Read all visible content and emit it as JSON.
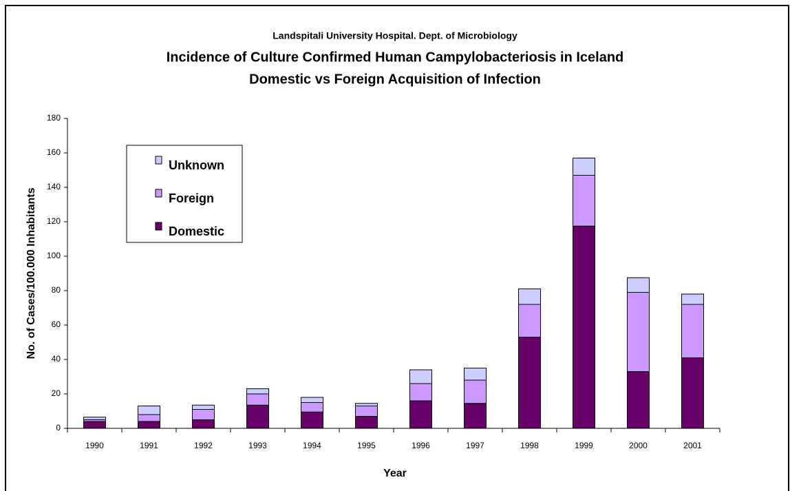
{
  "chart_data": {
    "type": "stacked_bar",
    "source": "Landspitali University Hospital.  Dept. of Microbiology",
    "title": "Incidence of Culture Confirmed Human Campylobacteriosis in Iceland",
    "subtitle": "Domestic vs Foreign Acquisition of Infection",
    "x_label": "Year",
    "y_label": "No. of Cases/100.000 Inhabitants",
    "categories": [
      "1990",
      "1991",
      "1992",
      "1993",
      "1994",
      "1995",
      "1996",
      "1997",
      "1998",
      "1999",
      "2000",
      "2001"
    ],
    "series": [
      {
        "name": "Domestic",
        "color": "#660066",
        "values": [
          4,
          4,
          5,
          13.5,
          9.5,
          7,
          16,
          14.5,
          53,
          117.5,
          33,
          41
        ]
      },
      {
        "name": "Foreign",
        "color": "#cc99ff",
        "values": [
          1,
          4,
          6,
          6.5,
          5.5,
          6,
          10,
          13.5,
          19,
          29.5,
          46,
          31
        ]
      },
      {
        "name": "Unknown",
        "color": "#ccccff",
        "values": [
          1.5,
          5,
          2.5,
          3,
          3,
          1.5,
          8,
          7,
          9,
          10,
          8.5,
          6
        ]
      }
    ],
    "ylim": [
      0,
      180
    ],
    "yticks": [
      0,
      20,
      40,
      60,
      80,
      100,
      120,
      140,
      160,
      180
    ],
    "grid": false,
    "legend": "upper-left"
  }
}
